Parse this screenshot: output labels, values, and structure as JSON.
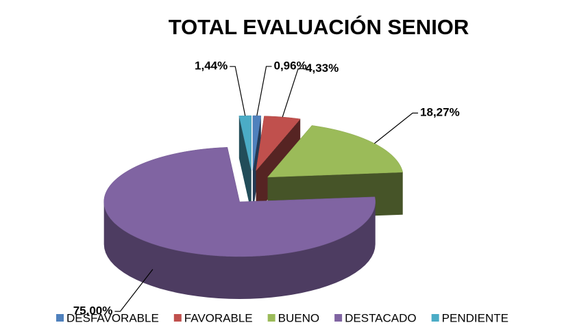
{
  "chart_data": {
    "type": "pie",
    "title": "TOTAL EVALUACIÓN SENIOR",
    "categories": [
      "DESFAVORABLE",
      "FAVORABLE",
      "BUENO",
      "DESTACADO",
      "PENDIENTE"
    ],
    "values": [
      0.96,
      4.33,
      18.27,
      75.0,
      1.44
    ],
    "value_labels": [
      "0,96%",
      "4,33%",
      "18,27%",
      "75,00%",
      "1,44%"
    ],
    "colors": [
      "#4f81bd",
      "#c0504d",
      "#9bbb59",
      "#8064a2",
      "#4bacc6"
    ],
    "legend": "bottom"
  }
}
